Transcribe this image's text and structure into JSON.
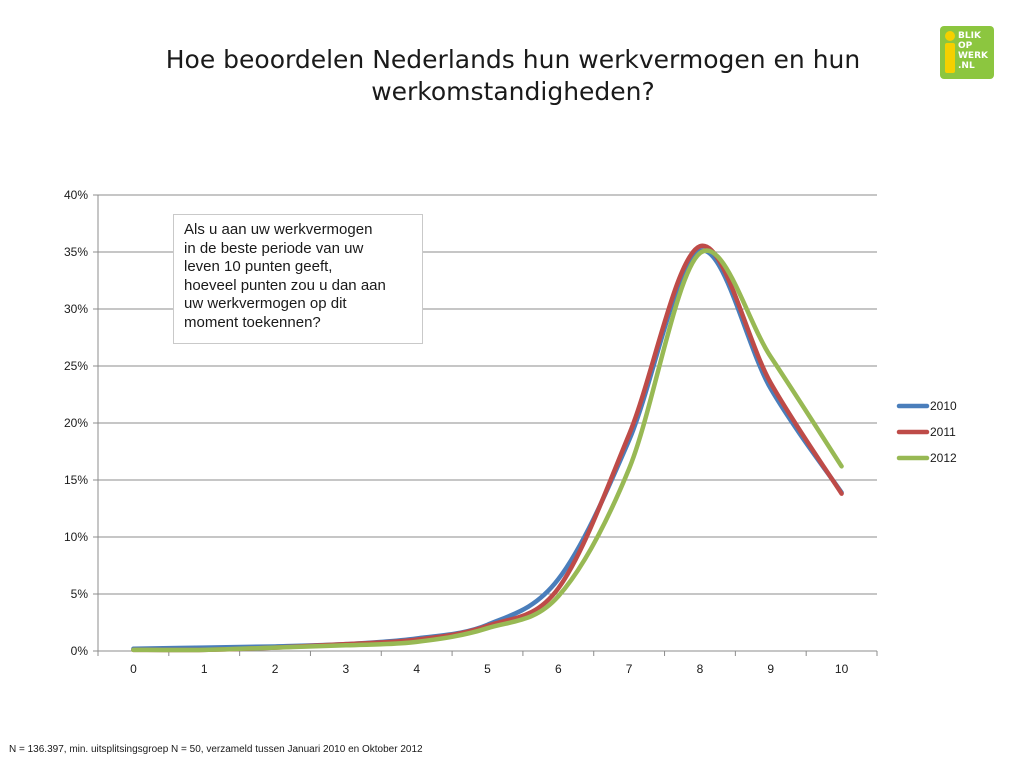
{
  "title": "Hoe beoordelen Nederlands hun werkvermogen en hun werkomstandigheden?",
  "logo": {
    "lines": [
      "BLIK",
      "OP",
      "WERK",
      ".NL"
    ]
  },
  "annotation": "Als u aan uw werkvermogen\nin de beste periode van uw\nleven 10 punten geeft,\nhoeveel punten zou u dan aan\nuw werkvermogen op dit\nmoment toekennen?",
  "footnote": "N = 136.397, min. uitsplitsingsgroep N = 50, verzameld tussen Januari 2010 en Oktober 2012",
  "chart_data": {
    "type": "line",
    "x": [
      0,
      1,
      2,
      3,
      4,
      5,
      6,
      7,
      8,
      9,
      10
    ],
    "x_tick_labels": [
      "0",
      "1",
      "2",
      "3",
      "4",
      "5",
      "6",
      "7",
      "8",
      "9",
      "10"
    ],
    "y_tick_labels": [
      "0%",
      "5%",
      "10%",
      "15%",
      "20%",
      "25%",
      "30%",
      "35%",
      "40%"
    ],
    "ylim": [
      0,
      40
    ],
    "grid": true,
    "legend_position": "right",
    "series": [
      {
        "name": "2010",
        "color": "#4a7ebb",
        "values": [
          0.2,
          0.3,
          0.4,
          0.6,
          1.1,
          2.3,
          6.3,
          18.5,
          35.1,
          23.0,
          13.9
        ]
      },
      {
        "name": "2011",
        "color": "#be4b48",
        "values": [
          0.1,
          0.1,
          0.3,
          0.6,
          1.0,
          2.2,
          5.5,
          19.0,
          35.5,
          23.5,
          13.8
        ]
      },
      {
        "name": "2012",
        "color": "#98b954",
        "values": [
          0.1,
          0.1,
          0.3,
          0.5,
          0.8,
          2.0,
          4.8,
          16.0,
          34.9,
          25.8,
          16.2
        ]
      }
    ]
  }
}
